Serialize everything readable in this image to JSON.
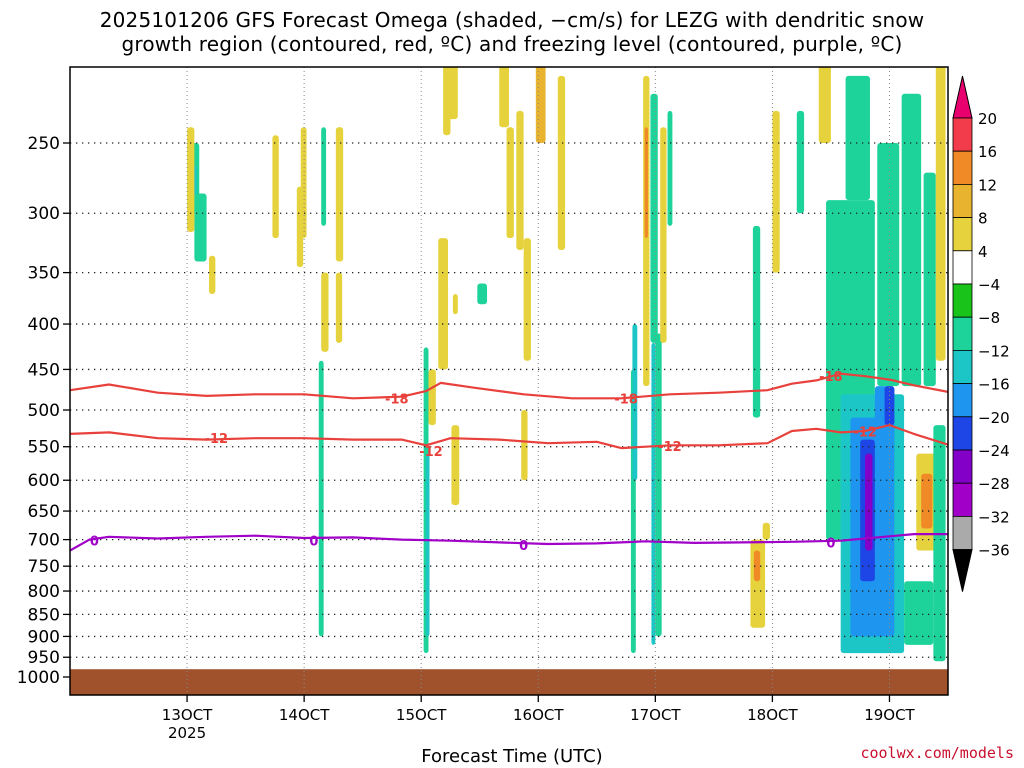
{
  "title": {
    "line1": "2025101206 GFS Forecast Omega (shaded, −cm/s) for LEZG with dendritic snow",
    "line2": "growth region (contoured, red, ºC) and freezing level (contoured, purple, ºC)"
  },
  "credit": "coolwx.com/models",
  "chart_data": {
    "type": "heatmap",
    "title": "2025101206 GFS Forecast Omega (shaded, −cm/s) for LEZG with dendritic snow growth region (contoured, red, ºC) and freezing level (contoured, purple, ºC)",
    "xlabel": "Forecast Time (UTC)",
    "ylabel": "",
    "y_scale": "log-pressure",
    "y_ticks": [
      250,
      300,
      350,
      400,
      450,
      500,
      550,
      600,
      650,
      700,
      750,
      800,
      850,
      900,
      950,
      1000
    ],
    "y_range_hPa": [
      200,
      1000
    ],
    "x_ticks": [
      {
        "label": "13OCT",
        "sub": "2025",
        "hour": 186
      },
      {
        "label": "14OCT",
        "sub": "",
        "hour": 210
      },
      {
        "label": "15OCT",
        "sub": "",
        "hour": 234
      },
      {
        "label": "16OCT",
        "sub": "",
        "hour": 258
      },
      {
        "label": "17OCT",
        "sub": "",
        "hour": 282
      },
      {
        "label": "18OCT",
        "sub": "",
        "hour": 306
      },
      {
        "label": "19OCT",
        "sub": "",
        "hour": 330
      }
    ],
    "x_range_hour": [
      162,
      342
    ],
    "grid": true,
    "colorbar": {
      "labels": [
        "20",
        "16",
        "12",
        "8",
        "4",
        "−4",
        "−8",
        "−12",
        "−16",
        "−20",
        "−24",
        "−28",
        "−32",
        "−36"
      ],
      "colors": [
        "#e8006e",
        "#f23c4c",
        "#f08a26",
        "#e8b430",
        "#e6d23c",
        "#ffffff",
        "#19c319",
        "#1ed39a",
        "#1cc6c6",
        "#1e96f0",
        "#1e46e6",
        "#8200c8",
        "#a000c8",
        "#aaaaaa",
        "#000000"
      ]
    },
    "omega_cells": [
      {
        "x0": 188.5,
        "x1": 198.5,
        "p0": 200,
        "p1": 205,
        "v": 4
      },
      {
        "x0": 186.5,
        "x1": 188.5,
        "p0": 250,
        "p1": 300,
        "v": -8
      },
      {
        "x0": 186.7,
        "x1": 188.0,
        "p0": 265,
        "p1": 300,
        "v": -12
      },
      {
        "x0": 187.5,
        "x1": 190.0,
        "p0": 285,
        "p1": 340,
        "v": -8
      },
      {
        "x0": 186.0,
        "x1": 187.5,
        "p0": 240,
        "p1": 315,
        "v": 6
      },
      {
        "x0": 190.5,
        "x1": 191.8,
        "p0": 335,
        "p1": 370,
        "v": 6
      },
      {
        "x0": 203.5,
        "x1": 204.8,
        "p0": 245,
        "p1": 320,
        "v": 6
      },
      {
        "x0": 208.5,
        "x1": 209.8,
        "p0": 280,
        "p1": 345,
        "v": 6
      },
      {
        "x0": 209.3,
        "x1": 210.5,
        "p0": 240,
        "p1": 320,
        "v": 6
      },
      {
        "x0": 213.5,
        "x1": 214.5,
        "p0": 240,
        "p1": 310,
        "v": -8
      },
      {
        "x0": 216.5,
        "x1": 218.0,
        "p0": 240,
        "p1": 340,
        "v": 6
      },
      {
        "x0": 213.5,
        "x1": 215.0,
        "p0": 350,
        "p1": 430,
        "v": 6
      },
      {
        "x0": 216.5,
        "x1": 217.8,
        "p0": 350,
        "p1": 420,
        "v": 6
      },
      {
        "x0": 213.0,
        "x1": 214.0,
        "p0": 440,
        "p1": 900,
        "v": -8
      },
      {
        "x0": 237.5,
        "x1": 239.5,
        "p0": 320,
        "p1": 450,
        "v": 6
      },
      {
        "x0": 238.5,
        "x1": 240.0,
        "p0": 200,
        "p1": 245,
        "v": 6
      },
      {
        "x0": 239.5,
        "x1": 241.5,
        "p0": 200,
        "p1": 235,
        "v": 4
      },
      {
        "x0": 234.5,
        "x1": 235.5,
        "p0": 425,
        "p1": 940,
        "v": -8
      },
      {
        "x0": 235.0,
        "x1": 235.7,
        "p0": 560,
        "p1": 900,
        "v": -12
      },
      {
        "x0": 235.5,
        "x1": 237.0,
        "p0": 450,
        "p1": 520,
        "v": 6
      },
      {
        "x0": 240.5,
        "x1": 241.5,
        "p0": 370,
        "p1": 390,
        "v": 6
      },
      {
        "x0": 240.2,
        "x1": 241.8,
        "p0": 520,
        "p1": 640,
        "v": 6
      },
      {
        "x0": 245.5,
        "x1": 247.5,
        "p0": 360,
        "p1": 380,
        "v": -8
      },
      {
        "x0": 250.0,
        "x1": 252.0,
        "p0": 200,
        "p1": 240,
        "v": 6
      },
      {
        "x0": 251.5,
        "x1": 253.0,
        "p0": 240,
        "p1": 320,
        "v": 6
      },
      {
        "x0": 253.5,
        "x1": 255.0,
        "p0": 230,
        "p1": 330,
        "v": 6
      },
      {
        "x0": 255.0,
        "x1": 256.5,
        "p0": 320,
        "p1": 440,
        "v": 6
      },
      {
        "x0": 254.5,
        "x1": 255.8,
        "p0": 500,
        "p1": 600,
        "v": 6
      },
      {
        "x0": 257.5,
        "x1": 259.5,
        "p0": 200,
        "p1": 250,
        "v": 8
      },
      {
        "x0": 262.0,
        "x1": 263.5,
        "p0": 210,
        "p1": 330,
        "v": 6
      },
      {
        "x0": 277.0,
        "x1": 278.0,
        "p0": 450,
        "p1": 940,
        "v": -8
      },
      {
        "x0": 277.3,
        "x1": 278.3,
        "p0": 400,
        "p1": 600,
        "v": -12
      },
      {
        "x0": 279.5,
        "x1": 280.8,
        "p0": 210,
        "p1": 470,
        "v": 6
      },
      {
        "x0": 279.8,
        "x1": 280.5,
        "p0": 240,
        "p1": 320,
        "v": 12
      },
      {
        "x0": 281.0,
        "x1": 282.5,
        "p0": 220,
        "p1": 420,
        "v": -8
      },
      {
        "x0": 281.2,
        "x1": 282.0,
        "p0": 420,
        "p1": 920,
        "v": -12
      },
      {
        "x0": 282.0,
        "x1": 283.3,
        "p0": 410,
        "p1": 900,
        "v": -8
      },
      {
        "x0": 283.0,
        "x1": 284.3,
        "p0": 240,
        "p1": 420,
        "v": 6
      },
      {
        "x0": 284.5,
        "x1": 285.5,
        "p0": 230,
        "p1": 310,
        "v": -8
      },
      {
        "x0": 302.0,
        "x1": 303.5,
        "p0": 310,
        "p1": 510,
        "v": -8
      },
      {
        "x0": 301.5,
        "x1": 304.5,
        "p0": 700,
        "p1": 880,
        "v": 6
      },
      {
        "x0": 302.2,
        "x1": 303.5,
        "p0": 720,
        "p1": 780,
        "v": 12
      },
      {
        "x0": 304.0,
        "x1": 305.5,
        "p0": 670,
        "p1": 700,
        "v": 6
      },
      {
        "x0": 306.0,
        "x1": 307.5,
        "p0": 230,
        "p1": 350,
        "v": 6
      },
      {
        "x0": 311.0,
        "x1": 312.5,
        "p0": 230,
        "p1": 300,
        "v": -8
      },
      {
        "x0": 315.5,
        "x1": 318.0,
        "p0": 200,
        "p1": 250,
        "v": 4
      },
      {
        "x0": 317.0,
        "x1": 327.0,
        "p0": 290,
        "p1": 700,
        "v": -8
      },
      {
        "x0": 321.0,
        "x1": 326.0,
        "p0": 210,
        "p1": 290,
        "v": -8
      },
      {
        "x0": 327.5,
        "x1": 332.0,
        "p0": 250,
        "p1": 470,
        "v": -8
      },
      {
        "x0": 332.5,
        "x1": 336.5,
        "p0": 220,
        "p1": 470,
        "v": -8
      },
      {
        "x0": 337.0,
        "x1": 339.5,
        "p0": 270,
        "p1": 470,
        "v": -8
      },
      {
        "x0": 339.5,
        "x1": 341.5,
        "p0": 200,
        "p1": 440,
        "v": 4
      },
      {
        "x0": 320.0,
        "x1": 333.0,
        "p0": 480,
        "p1": 940,
        "v": -12
      },
      {
        "x0": 322.0,
        "x1": 331.0,
        "p0": 510,
        "p1": 900,
        "v": -16
      },
      {
        "x0": 324.0,
        "x1": 327.0,
        "p0": 540,
        "p1": 780,
        "v": -20
      },
      {
        "x0": 325.0,
        "x1": 326.5,
        "p0": 560,
        "p1": 720,
        "v": -24
      },
      {
        "x0": 327.0,
        "x1": 331.0,
        "p0": 470,
        "p1": 560,
        "v": -16
      },
      {
        "x0": 329.0,
        "x1": 331.0,
        "p0": 470,
        "p1": 520,
        "v": -20
      },
      {
        "x0": 333.0,
        "x1": 339.0,
        "p0": 780,
        "p1": 920,
        "v": -8
      },
      {
        "x0": 335.5,
        "x1": 339.5,
        "p0": 560,
        "p1": 720,
        "v": 6
      },
      {
        "x0": 336.5,
        "x1": 338.8,
        "p0": 590,
        "p1": 680,
        "v": 12
      },
      {
        "x0": 339.0,
        "x1": 341.5,
        "p0": 520,
        "p1": 960,
        "v": -8
      }
    ],
    "contours": [
      {
        "name": "-18",
        "color": "#e8413c",
        "points": [
          [
            162,
            475
          ],
          [
            170,
            468
          ],
          [
            180,
            478
          ],
          [
            190,
            482
          ],
          [
            200,
            480
          ],
          [
            210,
            480
          ],
          [
            220,
            485
          ],
          [
            230,
            483
          ],
          [
            235,
            476
          ],
          [
            238,
            466
          ],
          [
            245,
            472
          ],
          [
            255,
            480
          ],
          [
            265,
            485
          ],
          [
            275,
            485
          ],
          [
            285,
            480
          ],
          [
            295,
            478
          ],
          [
            305,
            475
          ],
          [
            310,
            467
          ],
          [
            315,
            463
          ],
          [
            320,
            455
          ],
          [
            325,
            458
          ],
          [
            330,
            462
          ],
          [
            335,
            469
          ],
          [
            342,
            477
          ]
        ]
      },
      {
        "name": "-12",
        "color": "#e8413c",
        "points": [
          [
            162,
            532
          ],
          [
            170,
            530
          ],
          [
            180,
            538
          ],
          [
            190,
            540
          ],
          [
            200,
            538
          ],
          [
            210,
            538
          ],
          [
            220,
            540
          ],
          [
            230,
            540
          ],
          [
            235,
            548
          ],
          [
            240,
            538
          ],
          [
            250,
            540
          ],
          [
            260,
            545
          ],
          [
            270,
            543
          ],
          [
            275,
            552
          ],
          [
            285,
            548
          ],
          [
            295,
            548
          ],
          [
            305,
            545
          ],
          [
            310,
            528
          ],
          [
            315,
            525
          ],
          [
            320,
            530
          ],
          [
            325,
            528
          ],
          [
            330,
            520
          ],
          [
            335,
            532
          ],
          [
            342,
            547
          ]
        ]
      },
      {
        "name": "0",
        "color": "#a000c8",
        "points": [
          [
            162,
            720
          ],
          [
            166,
            700
          ],
          [
            170,
            695
          ],
          [
            180,
            698
          ],
          [
            190,
            695
          ],
          [
            200,
            693
          ],
          [
            210,
            697
          ],
          [
            220,
            696
          ],
          [
            230,
            700
          ],
          [
            240,
            702
          ],
          [
            250,
            705
          ],
          [
            260,
            708
          ],
          [
            270,
            707
          ],
          [
            280,
            703
          ],
          [
            290,
            706
          ],
          [
            300,
            705
          ],
          [
            310,
            704
          ],
          [
            320,
            702
          ],
          [
            325,
            698
          ],
          [
            330,
            694
          ],
          [
            335,
            690
          ],
          [
            342,
            690
          ]
        ]
      }
    ],
    "contour_labels": [
      {
        "text": "-18",
        "hour": 229,
        "p": 485,
        "color": "#e8413c"
      },
      {
        "text": "-18",
        "hour": 276,
        "p": 485,
        "color": "#e8413c"
      },
      {
        "text": "-18",
        "hour": 318,
        "p": 458,
        "color": "#e8413c"
      },
      {
        "text": "-12",
        "hour": 192,
        "p": 538,
        "color": "#e8413c"
      },
      {
        "text": "-12",
        "hour": 236,
        "p": 556,
        "color": "#e8413c"
      },
      {
        "text": "-12",
        "hour": 285,
        "p": 549,
        "color": "#e8413c"
      },
      {
        "text": "-12",
        "hour": 325,
        "p": 529,
        "color": "#e8413c"
      },
      {
        "text": "0",
        "hour": 167,
        "p": 702,
        "color": "#a000c8"
      },
      {
        "text": "0",
        "hour": 212,
        "p": 702,
        "color": "#a000c8"
      },
      {
        "text": "0",
        "hour": 255,
        "p": 710,
        "color": "#a000c8"
      },
      {
        "text": "0",
        "hour": 318,
        "p": 705,
        "color": "#a000c8"
      }
    ],
    "ground_p": 980
  }
}
